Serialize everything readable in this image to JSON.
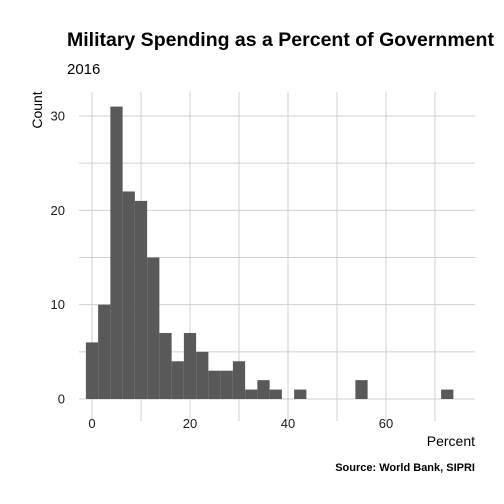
{
  "chart_data": {
    "type": "bar",
    "title": "Military Spending as a Percent of Government",
    "subtitle": "2016",
    "xlabel": "Percent",
    "ylabel": "Count",
    "caption": "Source: World Bank, SIPRI",
    "xlim": [
      -1.5,
      75
    ],
    "ylim": [
      0,
      33
    ],
    "x_ticks": [
      0,
      20,
      40,
      60
    ],
    "y_ticks": [
      0,
      10,
      20,
      30
    ],
    "grid": true,
    "legend": "none",
    "bin_width": 2.5,
    "bins": [
      {
        "x0": -1.25,
        "x1": 1.25,
        "count": 6
      },
      {
        "x0": 1.25,
        "x1": 3.75,
        "count": 10
      },
      {
        "x0": 3.75,
        "x1": 6.25,
        "count": 31
      },
      {
        "x0": 6.25,
        "x1": 8.75,
        "count": 22
      },
      {
        "x0": 8.75,
        "x1": 11.25,
        "count": 21
      },
      {
        "x0": 11.25,
        "x1": 13.75,
        "count": 15
      },
      {
        "x0": 13.75,
        "x1": 16.25,
        "count": 7
      },
      {
        "x0": 16.25,
        "x1": 18.75,
        "count": 4
      },
      {
        "x0": 18.75,
        "x1": 21.25,
        "count": 7
      },
      {
        "x0": 21.25,
        "x1": 23.75,
        "count": 5
      },
      {
        "x0": 23.75,
        "x1": 26.25,
        "count": 3
      },
      {
        "x0": 26.25,
        "x1": 28.75,
        "count": 3
      },
      {
        "x0": 28.75,
        "x1": 31.25,
        "count": 4
      },
      {
        "x0": 31.25,
        "x1": 33.75,
        "count": 1
      },
      {
        "x0": 33.75,
        "x1": 36.25,
        "count": 2
      },
      {
        "x0": 36.25,
        "x1": 38.75,
        "count": 1
      },
      {
        "x0": 41.25,
        "x1": 43.75,
        "count": 1
      },
      {
        "x0": 53.75,
        "x1": 56.25,
        "count": 2
      },
      {
        "x0": 71.25,
        "x1": 73.75,
        "count": 1
      }
    ]
  }
}
